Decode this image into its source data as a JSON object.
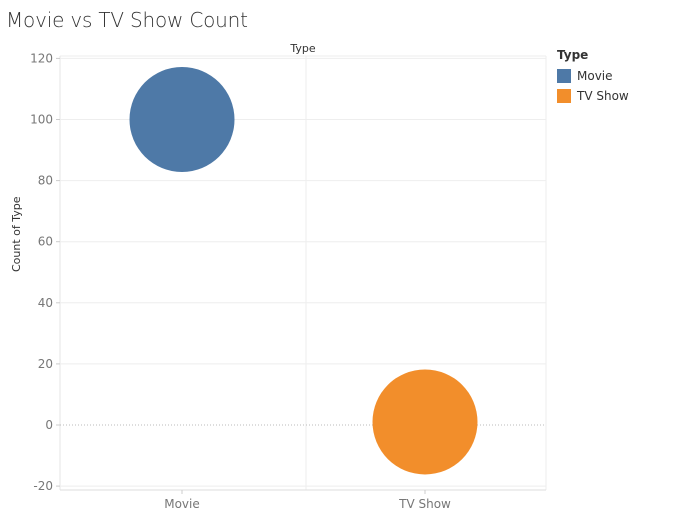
{
  "title": "Movie vs TV Show Count",
  "chart_data": {
    "type": "scatter",
    "header": "Type",
    "ylabel": "Count of Type",
    "categories": [
      "Movie",
      "TV Show"
    ],
    "values": [
      100,
      1
    ],
    "colors": [
      "#4e79a7",
      "#f28e2b"
    ],
    "yticks": [
      120,
      100,
      80,
      60,
      40,
      20,
      0,
      -20
    ],
    "ylim": [
      -22,
      122
    ],
    "grid": true,
    "legend": {
      "title": "Type",
      "position": "top-right",
      "items": [
        {
          "label": "Movie",
          "color": "#4e79a7"
        },
        {
          "label": "TV Show",
          "color": "#f28e2b"
        }
      ]
    }
  }
}
